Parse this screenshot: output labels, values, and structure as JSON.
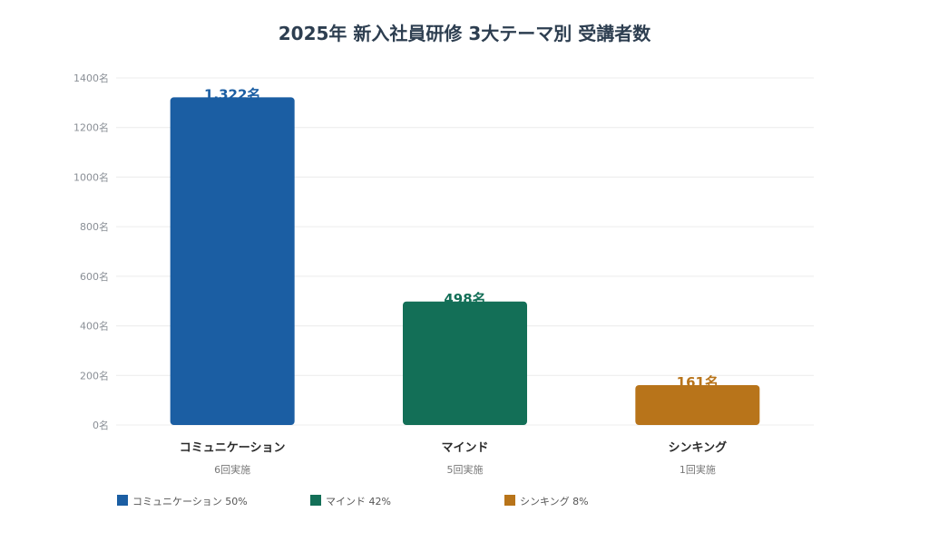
{
  "chart_data": {
    "type": "bar",
    "title": "2025年 新入社員研修 3大テーマ別 受講者数",
    "xlabel": "",
    "ylabel": "",
    "ylim": [
      0,
      1400
    ],
    "y_ticks": [
      {
        "value": 0,
        "label": "0名"
      },
      {
        "value": 200,
        "label": "200名"
      },
      {
        "value": 400,
        "label": "400名"
      },
      {
        "value": 600,
        "label": "600名"
      },
      {
        "value": 800,
        "label": "800名"
      },
      {
        "value": 1000,
        "label": "1000名"
      },
      {
        "value": 1200,
        "label": "1200名"
      },
      {
        "value": 1400,
        "label": "1400名"
      }
    ],
    "grid": true,
    "legend_position": "bottom-left",
    "bars": [
      {
        "category": "コミュニケーション",
        "value": 1322,
        "value_label": "1,322名",
        "sessions": "6回実施",
        "color": "#1b5ea3",
        "legend": "コミュニケーション 50%"
      },
      {
        "category": "マインド",
        "value": 498,
        "value_label": "498名",
        "sessions": "5回実施",
        "color": "#136f57",
        "legend": "マインド 42%"
      },
      {
        "category": "シンキング",
        "value": 161,
        "value_label": "161名",
        "sessions": "1回実施",
        "color": "#b8741a",
        "legend": "シンキング 8%"
      }
    ]
  }
}
